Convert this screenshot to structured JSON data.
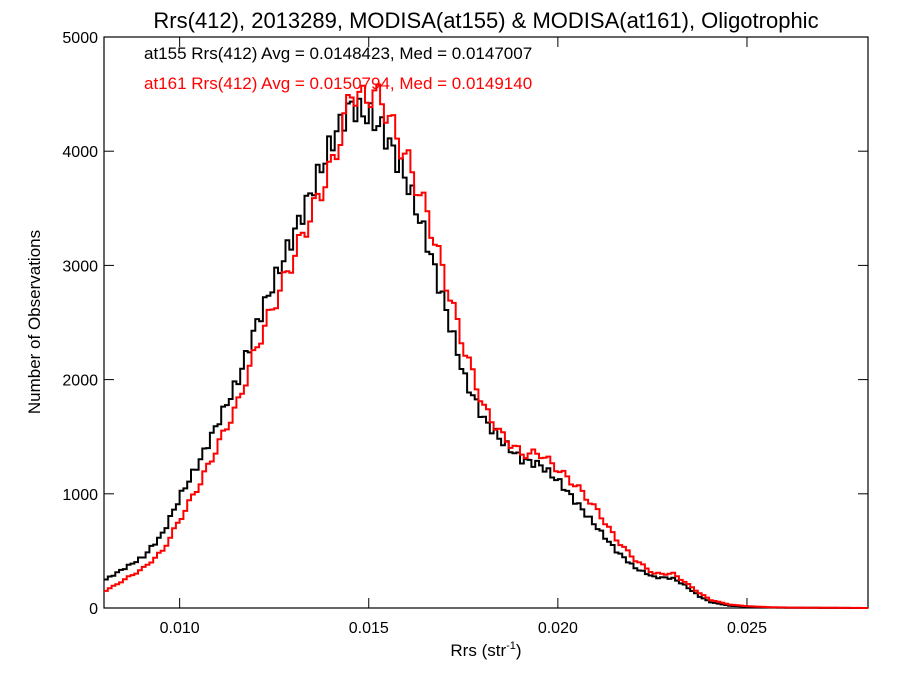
{
  "chart_data": {
    "type": "line",
    "title": "Rrs(412), 2013289, MODISA(at155) & MODISA(at161), Oligotrophic",
    "xlabel": "Rrs (str",
    "xlabel_sup": "-1",
    "xlabel_close": ")",
    "ylabel": "Number of Observations",
    "xlim": [
      0.008,
      0.0282
    ],
    "ylim": [
      0,
      5000
    ],
    "x_ticks": [
      0.01,
      0.015,
      0.02,
      0.025
    ],
    "x_tick_labels": [
      "0.010",
      "0.015",
      "0.020",
      "0.025"
    ],
    "y_ticks": [
      0,
      1000,
      2000,
      3000,
      4000,
      5000
    ],
    "y_tick_labels": [
      "0",
      "1000",
      "2000",
      "3000",
      "4000",
      "5000"
    ],
    "grid": false,
    "legend_position": "top-left",
    "series": [
      {
        "name": "at155",
        "color": "#000000",
        "annotation": "at155 Rrs(412) Avg = 0.0148423, Med = 0.0147007",
        "x": [
          0.008,
          0.0085,
          0.009,
          0.0095,
          0.01,
          0.0105,
          0.011,
          0.0115,
          0.012,
          0.0125,
          0.013,
          0.0135,
          0.014,
          0.0143,
          0.0145,
          0.0147,
          0.015,
          0.0153,
          0.0156,
          0.016,
          0.0165,
          0.017,
          0.0175,
          0.018,
          0.0185,
          0.019,
          0.0195,
          0.02,
          0.0205,
          0.021,
          0.0215,
          0.022,
          0.0225,
          0.023,
          0.0233,
          0.0237,
          0.024,
          0.0245,
          0.025,
          0.0255,
          0.026,
          0.027,
          0.0282
        ],
        "values": [
          250,
          350,
          450,
          650,
          1000,
          1300,
          1650,
          2000,
          2500,
          2900,
          3300,
          3700,
          4100,
          4300,
          4400,
          4350,
          4300,
          4200,
          4000,
          3700,
          3200,
          2600,
          2000,
          1650,
          1450,
          1300,
          1250,
          1100,
          900,
          700,
          500,
          350,
          270,
          260,
          200,
          100,
          50,
          20,
          10,
          5,
          3,
          1,
          0
        ]
      },
      {
        "name": "at161",
        "color": "#ff0000",
        "annotation": "at161 Rrs(412) Avg = 0.0150794, Med = 0.0149140",
        "x": [
          0.008,
          0.0085,
          0.009,
          0.0095,
          0.01,
          0.0105,
          0.011,
          0.0115,
          0.012,
          0.0125,
          0.013,
          0.0135,
          0.014,
          0.0143,
          0.0145,
          0.0147,
          0.015,
          0.0153,
          0.0156,
          0.016,
          0.0165,
          0.017,
          0.0175,
          0.018,
          0.0185,
          0.019,
          0.0195,
          0.02,
          0.0205,
          0.021,
          0.0215,
          0.022,
          0.0225,
          0.023,
          0.0233,
          0.0237,
          0.024,
          0.0245,
          0.025,
          0.0255,
          0.026,
          0.027,
          0.0282
        ],
        "values": [
          150,
          250,
          350,
          500,
          800,
          1100,
          1450,
          1800,
          2300,
          2700,
          3100,
          3500,
          3900,
          4250,
          4550,
          4450,
          4500,
          4450,
          4200,
          3900,
          3450,
          2850,
          2250,
          1750,
          1500,
          1350,
          1350,
          1200,
          1050,
          850,
          600,
          420,
          300,
          300,
          230,
          130,
          70,
          30,
          15,
          8,
          4,
          2,
          0
        ]
      }
    ]
  }
}
